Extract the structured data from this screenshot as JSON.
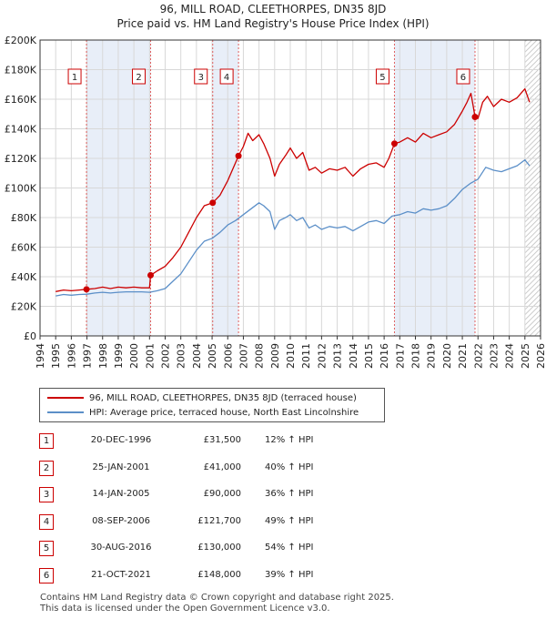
{
  "header": {
    "title": "96, MILL ROAD, CLEETHORPES, DN35 8JD",
    "subtitle": "Price paid vs. HM Land Registry's House Price Index (HPI)"
  },
  "colors": {
    "property": "#cc0000",
    "hpi": "#5b8fc8",
    "shade": "#e8eef8",
    "marker_border": "#cc0000"
  },
  "chart_data": {
    "type": "line",
    "title": "Price paid vs. HM Land Registry's House Price Index (HPI)",
    "xlim": [
      1994,
      2026
    ],
    "ylim": [
      0,
      200000
    ],
    "x_ticks": [
      "1994",
      "1995",
      "1996",
      "1997",
      "1998",
      "1999",
      "2000",
      "2001",
      "2002",
      "2003",
      "2004",
      "2005",
      "2006",
      "2007",
      "2008",
      "2009",
      "2010",
      "2011",
      "2012",
      "2013",
      "2014",
      "2015",
      "2016",
      "2017",
      "2018",
      "2019",
      "2020",
      "2021",
      "2022",
      "2023",
      "2024",
      "2025",
      "2026"
    ],
    "y_ticks": [
      {
        "value": 0,
        "label": "£0"
      },
      {
        "value": 20000,
        "label": "£20K"
      },
      {
        "value": 40000,
        "label": "£40K"
      },
      {
        "value": 60000,
        "label": "£60K"
      },
      {
        "value": 80000,
        "label": "£80K"
      },
      {
        "value": 100000,
        "label": "£100K"
      },
      {
        "value": 120000,
        "label": "£120K"
      },
      {
        "value": 140000,
        "label": "£140K"
      },
      {
        "value": 160000,
        "label": "£160K"
      },
      {
        "value": 180000,
        "label": "£180K"
      },
      {
        "value": 200000,
        "label": "£200K"
      }
    ],
    "series": [
      {
        "name": "96, MILL ROAD, CLEETHORPES, DN35 8JD (terraced house)",
        "color": "#cc0000",
        "points": [
          [
            1995.0,
            30000
          ],
          [
            1995.5,
            31000
          ],
          [
            1996.0,
            30500
          ],
          [
            1996.5,
            31000
          ],
          [
            1996.97,
            31500
          ],
          [
            1997.5,
            32000
          ],
          [
            1998.0,
            33000
          ],
          [
            1998.5,
            32000
          ],
          [
            1999.0,
            33000
          ],
          [
            1999.5,
            32500
          ],
          [
            2000.0,
            33000
          ],
          [
            2000.5,
            32500
          ],
          [
            2001.0,
            32500
          ],
          [
            2001.07,
            41000
          ],
          [
            2001.5,
            44000
          ],
          [
            2002.0,
            47000
          ],
          [
            2002.5,
            53000
          ],
          [
            2003.0,
            60000
          ],
          [
            2003.5,
            70000
          ],
          [
            2004.0,
            80000
          ],
          [
            2004.5,
            88000
          ],
          [
            2005.04,
            90000
          ],
          [
            2005.5,
            95000
          ],
          [
            2006.0,
            105000
          ],
          [
            2006.69,
            121700
          ],
          [
            2007.0,
            128000
          ],
          [
            2007.3,
            137000
          ],
          [
            2007.6,
            132000
          ],
          [
            2008.0,
            136000
          ],
          [
            2008.3,
            130000
          ],
          [
            2008.7,
            120000
          ],
          [
            2009.0,
            108000
          ],
          [
            2009.3,
            116000
          ],
          [
            2009.7,
            122000
          ],
          [
            2010.0,
            127000
          ],
          [
            2010.4,
            120000
          ],
          [
            2010.8,
            124000
          ],
          [
            2011.2,
            112000
          ],
          [
            2011.6,
            114000
          ],
          [
            2012.0,
            110000
          ],
          [
            2012.5,
            113000
          ],
          [
            2013.0,
            112000
          ],
          [
            2013.5,
            114000
          ],
          [
            2014.0,
            108000
          ],
          [
            2014.5,
            113000
          ],
          [
            2015.0,
            116000
          ],
          [
            2015.5,
            117000
          ],
          [
            2016.0,
            114000
          ],
          [
            2016.3,
            120000
          ],
          [
            2016.66,
            130000
          ],
          [
            2017.0,
            131000
          ],
          [
            2017.5,
            134000
          ],
          [
            2018.0,
            131000
          ],
          [
            2018.5,
            137000
          ],
          [
            2019.0,
            134000
          ],
          [
            2019.5,
            136000
          ],
          [
            2020.0,
            138000
          ],
          [
            2020.5,
            143000
          ],
          [
            2021.0,
            152000
          ],
          [
            2021.3,
            158000
          ],
          [
            2021.55,
            164000
          ],
          [
            2021.7,
            155000
          ],
          [
            2021.81,
            148000
          ],
          [
            2022.0,
            147000
          ],
          [
            2022.3,
            158000
          ],
          [
            2022.6,
            162000
          ],
          [
            2023.0,
            155000
          ],
          [
            2023.5,
            160000
          ],
          [
            2024.0,
            158000
          ],
          [
            2024.5,
            161000
          ],
          [
            2025.0,
            167000
          ],
          [
            2025.3,
            158000
          ]
        ]
      },
      {
        "name": "HPI: Average price, terraced house, North East Lincolnshire",
        "color": "#5b8fc8",
        "points": [
          [
            1995.0,
            27000
          ],
          [
            1995.5,
            28000
          ],
          [
            1996.0,
            27500
          ],
          [
            1996.5,
            28000
          ],
          [
            1997.0,
            28200
          ],
          [
            1997.5,
            29000
          ],
          [
            1998.0,
            29500
          ],
          [
            1998.5,
            29000
          ],
          [
            1999.0,
            29500
          ],
          [
            1999.5,
            29800
          ],
          [
            2000.0,
            29800
          ],
          [
            2000.5,
            29800
          ],
          [
            2001.0,
            29500
          ],
          [
            2001.5,
            30500
          ],
          [
            2002.0,
            32000
          ],
          [
            2002.5,
            37000
          ],
          [
            2003.0,
            42000
          ],
          [
            2003.5,
            50000
          ],
          [
            2004.0,
            58000
          ],
          [
            2004.5,
            64000
          ],
          [
            2005.0,
            66000
          ],
          [
            2005.5,
            70000
          ],
          [
            2006.0,
            75000
          ],
          [
            2006.5,
            78000
          ],
          [
            2007.0,
            82000
          ],
          [
            2007.5,
            86000
          ],
          [
            2008.0,
            90000
          ],
          [
            2008.3,
            88000
          ],
          [
            2008.7,
            84000
          ],
          [
            2009.0,
            72000
          ],
          [
            2009.3,
            78000
          ],
          [
            2009.7,
            80000
          ],
          [
            2010.0,
            82000
          ],
          [
            2010.4,
            78000
          ],
          [
            2010.8,
            80000
          ],
          [
            2011.2,
            73000
          ],
          [
            2011.6,
            75000
          ],
          [
            2012.0,
            72000
          ],
          [
            2012.5,
            74000
          ],
          [
            2013.0,
            73000
          ],
          [
            2013.5,
            74000
          ],
          [
            2014.0,
            71000
          ],
          [
            2014.5,
            74000
          ],
          [
            2015.0,
            77000
          ],
          [
            2015.5,
            78000
          ],
          [
            2016.0,
            76000
          ],
          [
            2016.5,
            81000
          ],
          [
            2017.0,
            82000
          ],
          [
            2017.5,
            84000
          ],
          [
            2018.0,
            83000
          ],
          [
            2018.5,
            86000
          ],
          [
            2019.0,
            85000
          ],
          [
            2019.5,
            86000
          ],
          [
            2020.0,
            88000
          ],
          [
            2020.5,
            93000
          ],
          [
            2021.0,
            99000
          ],
          [
            2021.5,
            103000
          ],
          [
            2022.0,
            106000
          ],
          [
            2022.5,
            114000
          ],
          [
            2023.0,
            112000
          ],
          [
            2023.5,
            111000
          ],
          [
            2024.0,
            113000
          ],
          [
            2024.5,
            115000
          ],
          [
            2025.0,
            119000
          ],
          [
            2025.3,
            115000
          ]
        ]
      }
    ],
    "sales": [
      {
        "n": "1",
        "x": 1996.97,
        "y": 31500
      },
      {
        "n": "2",
        "x": 2001.07,
        "y": 41000
      },
      {
        "n": "3",
        "x": 2005.04,
        "y": 90000
      },
      {
        "n": "4",
        "x": 2006.69,
        "y": 121700
      },
      {
        "n": "5",
        "x": 2016.66,
        "y": 130000
      },
      {
        "n": "6",
        "x": 2021.81,
        "y": 148000
      }
    ],
    "shaded_ranges": [
      [
        1996.97,
        2001.07
      ],
      [
        2005.04,
        2006.69
      ],
      [
        2016.66,
        2021.81
      ]
    ],
    "hatch_from": 2025.0
  },
  "legend": {
    "items": [
      {
        "label": "96, MILL ROAD, CLEETHORPES, DN35 8JD (terraced house)"
      },
      {
        "label": "HPI: Average price, terraced house, North East Lincolnshire"
      }
    ]
  },
  "sales_table": {
    "rows": [
      {
        "num": "1",
        "date": "20-DEC-1996",
        "price": "£31,500",
        "hpi": "12% ↑ HPI"
      },
      {
        "num": "2",
        "date": "25-JAN-2001",
        "price": "£41,000",
        "hpi": "40% ↑ HPI"
      },
      {
        "num": "3",
        "date": "14-JAN-2005",
        "price": "£90,000",
        "hpi": "36% ↑ HPI"
      },
      {
        "num": "4",
        "date": "08-SEP-2006",
        "price": "£121,700",
        "hpi": "49% ↑ HPI"
      },
      {
        "num": "5",
        "date": "30-AUG-2016",
        "price": "£130,000",
        "hpi": "54% ↑ HPI"
      },
      {
        "num": "6",
        "date": "21-OCT-2021",
        "price": "£148,000",
        "hpi": "39% ↑ HPI"
      }
    ]
  },
  "footer": {
    "line1": "Contains HM Land Registry data © Crown copyright and database right 2025.",
    "line2": "This data is licensed under the Open Government Licence v3.0."
  }
}
